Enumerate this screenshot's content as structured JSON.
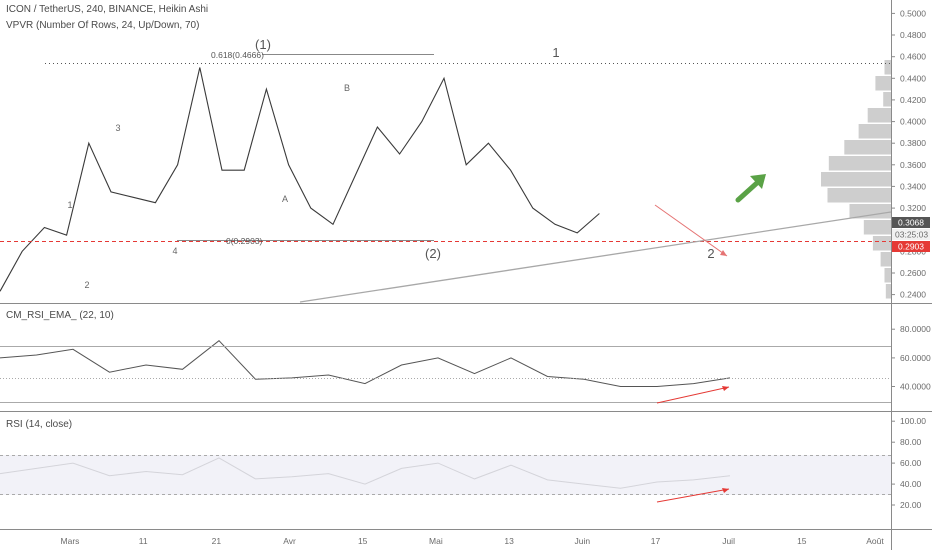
{
  "header": {
    "symbol": "ICON / TetherUS, 240, BINANCE, Heikin Ashi",
    "vpvr": "VPVR (Number Of Rows, 24, Up/Down, 70)",
    "rsi_ema": "CM_RSI_EMA_ (22, 10)",
    "rsi": "RSI (14, close)"
  },
  "colors": {
    "line": "#3a3a3a",
    "volume": "#bdbdbd",
    "red": "#e53935",
    "green": "#5aa246",
    "grid": "#b0b0b0",
    "last_price_bg": "#555555"
  },
  "chart_data": [
    {
      "type": "line",
      "title": "ICON / TetherUS, 240, BINANCE, Heikin Ashi",
      "x_ticks": [
        "Mars",
        "11",
        "21",
        "Avr",
        "15",
        "Mai",
        "13",
        "Juin",
        "17",
        "Juil",
        "15",
        "Août"
      ],
      "y_ticks": [
        "0.5000",
        "0.4800",
        "0.4600",
        "0.4400",
        "0.4200",
        "0.4000",
        "0.3800",
        "0.3600",
        "0.3400",
        "0.3200",
        "0.2800",
        "0.2600",
        "0.2400"
      ],
      "ylim": [
        0.235,
        0.505
      ],
      "series": [
        {
          "x": [
            0,
            0.03,
            0.06,
            0.09,
            0.12,
            0.15,
            0.18,
            0.21,
            0.24,
            0.27,
            0.3,
            0.33,
            0.36,
            0.39,
            0.42,
            0.45,
            0.48,
            0.51,
            0.54,
            0.57,
            0.6,
            0.63,
            0.66,
            0.69,
            0.72,
            0.75,
            0.78,
            0.81
          ],
          "values": [
            0.243,
            0.28,
            0.302,
            0.295,
            0.38,
            0.335,
            0.33,
            0.325,
            0.36,
            0.45,
            0.355,
            0.355,
            0.43,
            0.36,
            0.32,
            0.305,
            0.35,
            0.395,
            0.37,
            0.4,
            0.44,
            0.36,
            0.38,
            0.355,
            0.32,
            0.305,
            0.297,
            0.315
          ]
        }
      ],
      "volume_profile": [
        0.5,
        1.2,
        0.6,
        1.8,
        2.5,
        3.6,
        4.8,
        5.4,
        4.9,
        3.2,
        2.1,
        1.4,
        0.8,
        0.5,
        0.4
      ],
      "annotations": {
        "last_price": "0.3068",
        "countdown": "03:25:03",
        "support_price": "0.2903",
        "fib_high": "0.618(0.4666)",
        "fib_low": "0(0.2903)",
        "waves": [
          "1",
          "2",
          "3",
          "4",
          "(1)",
          "A",
          "B",
          "(2)",
          "1",
          "2"
        ]
      }
    },
    {
      "type": "line",
      "title": "CM_RSI_EMA_ (22, 10)",
      "y_ticks": [
        "80.0000",
        "60.0000",
        "40.0000"
      ],
      "ylim": [
        25,
        92
      ],
      "levels": [
        66,
        46,
        30
      ],
      "series": [
        {
          "x": [
            0,
            0.05,
            0.1,
            0.15,
            0.2,
            0.25,
            0.3,
            0.35,
            0.4,
            0.45,
            0.5,
            0.55,
            0.6,
            0.65,
            0.7,
            0.75,
            0.8,
            0.85,
            0.9,
            0.95,
            1
          ],
          "values": [
            60,
            62,
            66,
            50,
            55,
            52,
            72,
            45,
            46,
            48,
            42,
            55,
            60,
            49,
            60,
            47,
            45,
            40,
            40,
            42,
            46
          ]
        }
      ]
    },
    {
      "type": "line",
      "title": "RSI (14, close)",
      "y_ticks": [
        "100.00",
        "80.00",
        "60.00",
        "40.00",
        "20.00"
      ],
      "ylim": [
        0,
        105
      ],
      "levels": [
        70,
        30
      ],
      "series": [
        {
          "x": [
            0,
            0.05,
            0.1,
            0.15,
            0.2,
            0.25,
            0.3,
            0.35,
            0.4,
            0.45,
            0.5,
            0.55,
            0.6,
            0.65,
            0.7,
            0.75,
            0.8,
            0.85,
            0.9,
            0.95,
            1
          ],
          "values": [
            50,
            55,
            60,
            48,
            52,
            49,
            65,
            45,
            47,
            50,
            40,
            55,
            60,
            45,
            58,
            44,
            40,
            36,
            42,
            44,
            48
          ]
        }
      ]
    }
  ]
}
